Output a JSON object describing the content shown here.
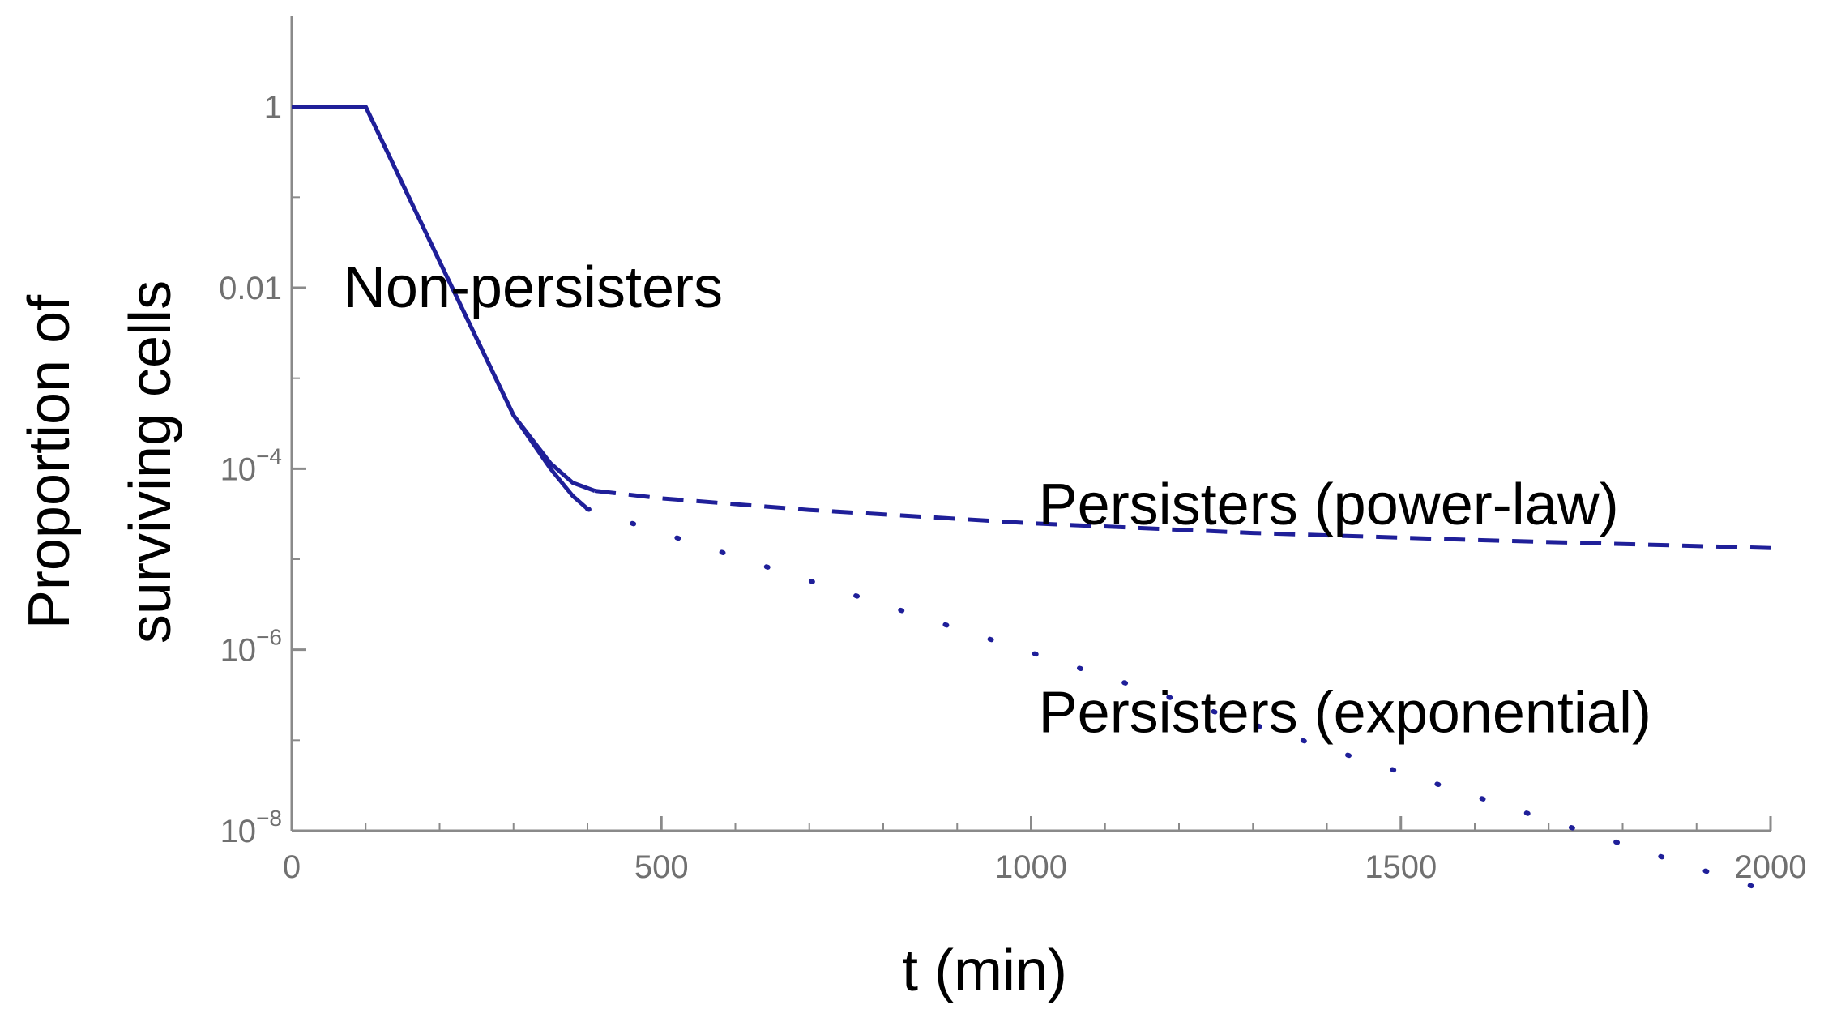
{
  "chart_data": {
    "type": "line",
    "xlabel": "t (min)",
    "ylabel_lines": [
      "Proportion of",
      "surviving cells"
    ],
    "xlim": [
      0,
      2000
    ],
    "ylim": [
      1e-08,
      10
    ],
    "y_scale": "log",
    "x_ticks": [
      {
        "value": 0,
        "label": "0"
      },
      {
        "value": 500,
        "label": "500"
      },
      {
        "value": 1000,
        "label": "1000"
      },
      {
        "value": 1500,
        "label": "1500"
      },
      {
        "value": 2000,
        "label": "2000"
      }
    ],
    "y_ticks": [
      {
        "value": 1,
        "base": "1",
        "exp": ""
      },
      {
        "value": 0.01,
        "base": "0.01",
        "exp": ""
      },
      {
        "value": 0.0001,
        "base": "10",
        "exp": "−4"
      },
      {
        "value": 1e-06,
        "base": "10",
        "exp": "−6"
      },
      {
        "value": 1e-08,
        "base": "10",
        "exp": "−8"
      }
    ],
    "x_minor_ticks": [
      100,
      200,
      300,
      400,
      600,
      700,
      800,
      900,
      1100,
      1200,
      1300,
      1400,
      1600,
      1700,
      1800,
      1900
    ],
    "y_minor_ticks": [
      0.1,
      0.001,
      1e-05,
      1e-07
    ],
    "color": "#1f1f99",
    "series": [
      {
        "style": "solid",
        "x": [
          0,
          100,
          200,
          300,
          350,
          380,
          410
        ],
        "y": [
          1,
          1,
          0.0195,
          0.000389,
          0.000115,
          7e-05,
          5.7e-05
        ]
      },
      {
        "style": "solid",
        "x": [
          0,
          100,
          200,
          300,
          350,
          380,
          400
        ],
        "y": [
          1,
          1,
          0.0195,
          0.000389,
          0.0001,
          5e-05,
          3.6e-05
        ]
      },
      {
        "style": "dashed",
        "x": [
          410,
          500,
          700,
          1000,
          1300,
          1600,
          2000
        ],
        "y": [
          5.7e-05,
          4.7e-05,
          3.5e-05,
          2.5e-05,
          1.95e-05,
          1.63e-05,
          1.33e-05
        ]
      },
      {
        "style": "dotted",
        "x": [
          400,
          700,
          1000,
          1300,
          1600,
          2000
        ],
        "y": [
          3.6e-05,
          5.8e-06,
          9.3e-07,
          1.5e-07,
          2.4e-08,
          2.1e-09
        ]
      }
    ],
    "annotations": [
      {
        "text": "Non-persisters",
        "x": 70,
        "y": 0.01
      },
      {
        "text": "Persisters (power-law)",
        "x": 1010,
        "y": 4e-05
      },
      {
        "text": "Persisters (exponential)",
        "x": 1010,
        "y": 2e-07
      }
    ]
  }
}
